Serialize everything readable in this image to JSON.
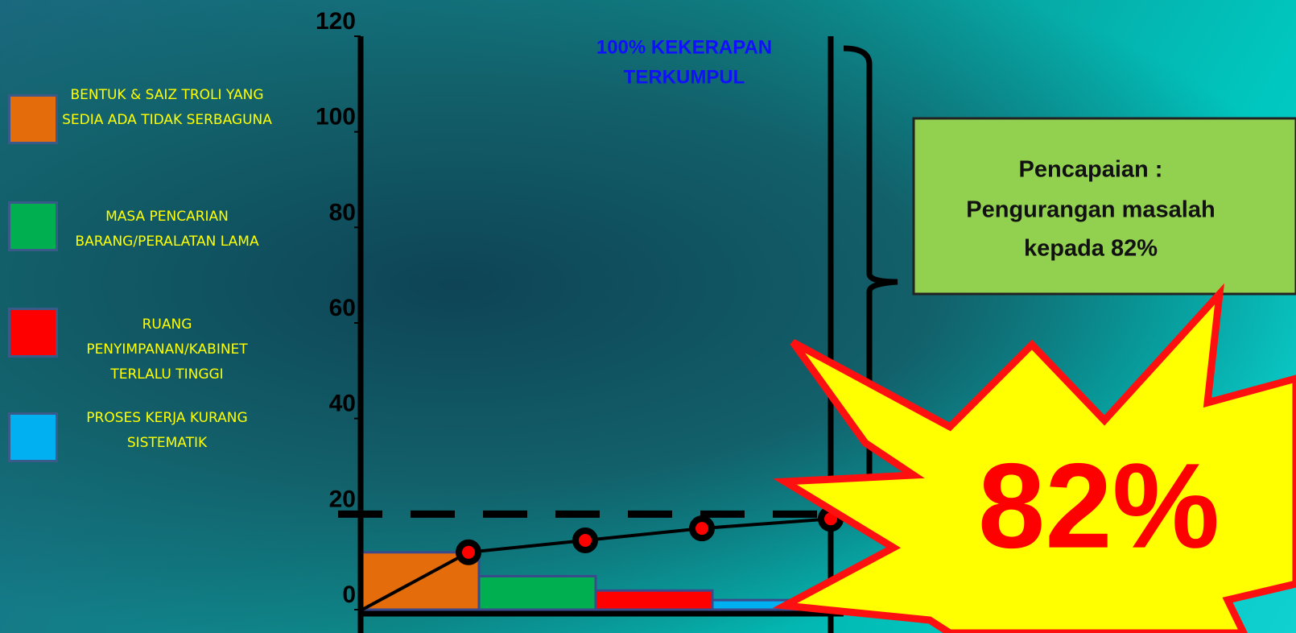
{
  "chart_data": {
    "type": "bar",
    "categories": [
      "BENTUK & SAIZ TROLI YANG SEDIA ADA TIDAK SERBAGUNA",
      "MASA PENCARIAN BARANG/PERALATAN LAMA",
      "RUANG PENYIMPANAN/KABINET TERLALU TINGGI",
      "PROSES KERJA KURANG SISTEMATIK"
    ],
    "values": [
      12,
      7,
      4,
      2
    ],
    "colors": [
      "#e46c0a",
      "#00b050",
      "#ff0000",
      "#00b0f0"
    ],
    "cumulative": {
      "values": [
        12,
        14.5,
        17,
        19
      ],
      "color": "#000000",
      "marker_color": "#ff0000"
    },
    "reference_line": 20,
    "annotation": [
      "100% KEKERAPAN",
      "TERKUMPUL"
    ],
    "ylim": [
      0,
      120
    ],
    "yticks": [
      0,
      20,
      40,
      60,
      80,
      100,
      120
    ]
  },
  "callout": {
    "lines": [
      "Pencapaian :",
      "Pengurangan masalah",
      "kepada  82%"
    ]
  },
  "starburst": {
    "text": "82%"
  }
}
